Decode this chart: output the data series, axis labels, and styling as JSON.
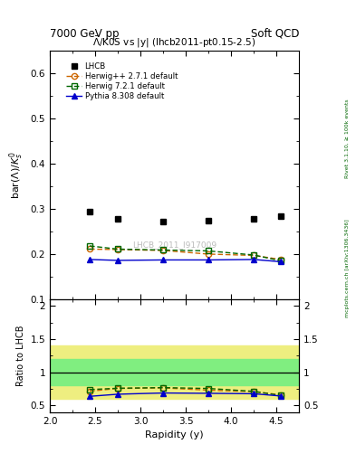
{
  "title_left": "7000 GeV pp",
  "title_right": "Soft QCD",
  "plot_title": "$\\bar{\\mathit{\\Lambda}}$/K0S vs |y| (lhcb2011-pt0.15-2.5)",
  "ylabel_main": "bar($\\Lambda$)/$K^0_s$",
  "ylabel_ratio": "Ratio to LHCB",
  "xlabel": "Rapidity (y)",
  "right_label_top": "Rivet 3.1.10, ≥ 100k events",
  "right_label_bot": "mcplots.cern.ch [arXiv:1306.3436]",
  "watermark": "LHCB_2011_I917009",
  "lhcb_x": [
    2.44,
    2.75,
    3.25,
    3.75,
    4.25,
    4.55
  ],
  "lhcb_y": [
    0.295,
    0.278,
    0.272,
    0.274,
    0.278,
    0.285
  ],
  "herwig_x": [
    2.44,
    2.75,
    3.25,
    3.75,
    4.25,
    4.55
  ],
  "herwig_y": [
    0.211,
    0.21,
    0.208,
    0.2,
    0.197,
    0.188
  ],
  "herwig72_x": [
    2.44,
    2.75,
    3.25,
    3.75,
    4.25,
    4.55
  ],
  "herwig72_y": [
    0.218,
    0.211,
    0.209,
    0.207,
    0.198,
    0.185
  ],
  "pythia_x": [
    2.44,
    2.75,
    3.25,
    3.75,
    4.25,
    4.55
  ],
  "pythia_y": [
    0.188,
    0.186,
    0.187,
    0.187,
    0.188,
    0.183
  ],
  "herwig_color": "#cc6600",
  "herwig72_color": "#006600",
  "pythia_color": "#0000cc",
  "lhcb_color": "#000000",
  "xlim": [
    2.0,
    4.75
  ],
  "ylim_main": [
    0.1,
    0.65
  ],
  "ylim_ratio": [
    0.4,
    2.1
  ],
  "band_inner_color": "#80ee80",
  "band_outer_color": "#eeee80",
  "band_inner": [
    0.8,
    1.2
  ],
  "band_outer": [
    0.6,
    1.4
  ]
}
